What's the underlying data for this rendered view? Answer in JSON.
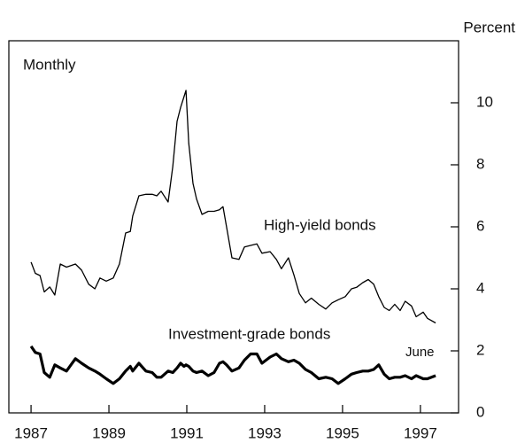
{
  "chart_data": {
    "type": "line",
    "y_unit_label": "Percent",
    "frequency_label": "Monthly",
    "annotations": [
      "High-yield bonds",
      "Investment-grade bonds",
      "June"
    ],
    "x": [
      1987.0,
      1987.11,
      1987.23,
      1987.34,
      1987.48,
      1987.61,
      1987.75,
      1987.91,
      1988.14,
      1988.3,
      1988.48,
      1988.64,
      1988.77,
      1988.93,
      1989.11,
      1989.27,
      1989.43,
      1989.55,
      1989.61,
      1989.77,
      1989.95,
      1990.11,
      1990.23,
      1990.34,
      1990.52,
      1990.64,
      1990.75,
      1990.84,
      1990.93,
      1990.98,
      1991.05,
      1991.16,
      1991.25,
      1991.39,
      1991.55,
      1991.7,
      1991.84,
      1991.93,
      1992.02,
      1992.16,
      1992.34,
      1992.48,
      1992.64,
      1992.8,
      1992.93,
      1993.14,
      1993.3,
      1993.43,
      1993.61,
      1993.75,
      1993.89,
      1994.05,
      1994.2,
      1994.39,
      1994.57,
      1994.73,
      1994.89,
      1995.07,
      1995.23,
      1995.36,
      1995.52,
      1995.66,
      1995.8,
      1995.93,
      1996.07,
      1996.2,
      1996.34,
      1996.48,
      1996.61,
      1996.77,
      1996.89,
      1997.07,
      1997.18,
      1997.39
    ],
    "series": [
      {
        "name": "High-yield bonds",
        "color": "#000000",
        "linewidth": 1.3,
        "values": [
          4.86,
          4.5,
          4.43,
          3.9,
          4.06,
          3.8,
          4.8,
          4.7,
          4.8,
          4.6,
          4.15,
          4.0,
          4.35,
          4.25,
          4.35,
          4.8,
          5.8,
          5.85,
          6.35,
          7.0,
          7.05,
          7.05,
          7.0,
          7.15,
          6.8,
          7.95,
          9.4,
          9.85,
          10.2,
          10.4,
          8.7,
          7.4,
          6.9,
          6.4,
          6.5,
          6.5,
          6.55,
          6.65,
          6.0,
          5.0,
          4.95,
          5.35,
          5.4,
          5.45,
          5.15,
          5.2,
          4.95,
          4.65,
          5.0,
          4.45,
          3.85,
          3.55,
          3.7,
          3.5,
          3.35,
          3.55,
          3.65,
          3.75,
          4.0,
          4.05,
          4.2,
          4.3,
          4.15,
          3.75,
          3.4,
          3.3,
          3.5,
          3.3,
          3.6,
          3.45,
          3.1,
          3.25,
          3.05,
          2.9
        ]
      },
      {
        "name": "Investment-grade bonds",
        "color": "#000000",
        "linewidth": 3.2,
        "values": [
          2.15,
          1.95,
          1.9,
          1.3,
          1.15,
          1.55,
          1.45,
          1.35,
          1.75,
          1.6,
          1.45,
          1.35,
          1.25,
          1.1,
          0.95,
          1.1,
          1.35,
          1.5,
          1.35,
          1.6,
          1.35,
          1.3,
          1.15,
          1.15,
          1.35,
          1.3,
          1.45,
          1.6,
          1.5,
          1.55,
          1.5,
          1.35,
          1.3,
          1.35,
          1.2,
          1.3,
          1.6,
          1.65,
          1.55,
          1.35,
          1.45,
          1.7,
          1.9,
          1.9,
          1.6,
          1.8,
          1.9,
          1.75,
          1.65,
          1.7,
          1.6,
          1.4,
          1.3,
          1.1,
          1.15,
          1.1,
          0.95,
          1.1,
          1.25,
          1.3,
          1.35,
          1.35,
          1.4,
          1.55,
          1.25,
          1.1,
          1.15,
          1.15,
          1.2,
          1.1,
          1.2,
          1.1,
          1.1,
          1.2
        ]
      }
    ],
    "xlim": [
      1986.43,
      1997.98
    ],
    "xticks": [
      1987,
      1989,
      1991,
      1993,
      1995,
      1997
    ],
    "ylim": [
      0,
      12
    ],
    "yticks": [
      0,
      2,
      4,
      6,
      8,
      10
    ],
    "grid": false
  }
}
